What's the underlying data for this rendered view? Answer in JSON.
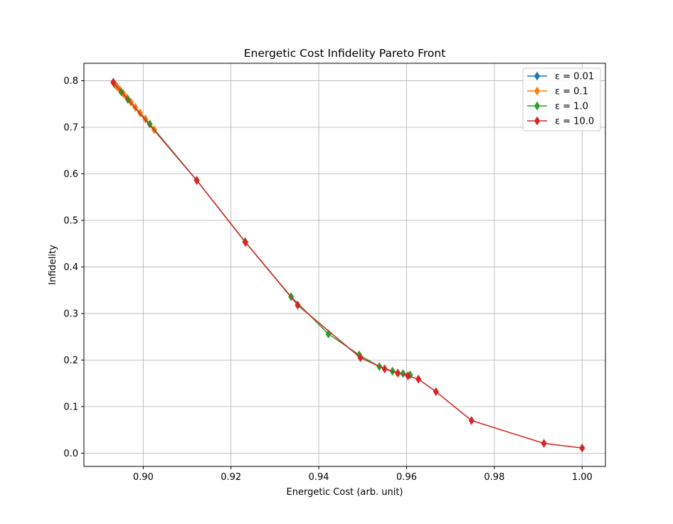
{
  "chart_data": {
    "type": "line",
    "title": "Energetic Cost Infidelity Pareto Front",
    "xlabel": "Energetic Cost (arb. unit)",
    "ylabel": "Infidelity",
    "xlim": [
      0.8865,
      1.0053
    ],
    "ylim": [
      -0.0285,
      0.8375
    ],
    "xticks": [
      0.9,
      0.92,
      0.94,
      0.96,
      0.98,
      1.0
    ],
    "xtick_labels": [
      "0.90",
      "0.92",
      "0.94",
      "0.96",
      "0.98",
      "1.00"
    ],
    "yticks": [
      0.0,
      0.1,
      0.2,
      0.3,
      0.4,
      0.5,
      0.6,
      0.7,
      0.8
    ],
    "ytick_labels": [
      "0.0",
      "0.1",
      "0.2",
      "0.3",
      "0.4",
      "0.5",
      "0.6",
      "0.7",
      "0.8"
    ],
    "grid": true,
    "marker": "thin_diamond",
    "legend_position": "top-right",
    "series": [
      {
        "name": "ε = 0.01",
        "color": "#1f77b4",
        "x": [
          0.8932,
          0.8935
        ],
        "y": [
          0.7965,
          0.792
        ]
      },
      {
        "name": "ε = 0.1",
        "color": "#ff7f0e",
        "x": [
          0.8932,
          0.894,
          0.8947,
          0.8955,
          0.8963,
          0.8972,
          0.8982,
          0.8993,
          0.9005,
          0.9025
        ],
        "y": [
          0.7965,
          0.7875,
          0.78,
          0.772,
          0.763,
          0.754,
          0.743,
          0.731,
          0.718,
          0.695
        ]
      },
      {
        "name": "ε = 1.0",
        "color": "#2ca02c",
        "x": [
          0.8932,
          0.895,
          0.8965,
          0.9015,
          0.9122,
          0.9232,
          0.9337,
          0.9422,
          0.9492,
          0.9538,
          0.9568,
          0.9592,
          0.9608
        ],
        "y": [
          0.7965,
          0.776,
          0.76,
          0.707,
          0.586,
          0.454,
          0.336,
          0.256,
          0.211,
          0.186,
          0.176,
          0.171,
          0.168
        ]
      },
      {
        "name": "ε = 10.0",
        "color": "#d62728",
        "x": [
          0.8932,
          0.9122,
          0.9233,
          0.9352,
          0.9495,
          0.955,
          0.958,
          0.9603,
          0.9627,
          0.9667,
          0.9748,
          0.9913,
          1.0
        ],
        "y": [
          0.7965,
          0.586,
          0.453,
          0.318,
          0.205,
          0.181,
          0.172,
          0.166,
          0.159,
          0.132,
          0.07,
          0.021,
          0.011
        ]
      }
    ]
  }
}
